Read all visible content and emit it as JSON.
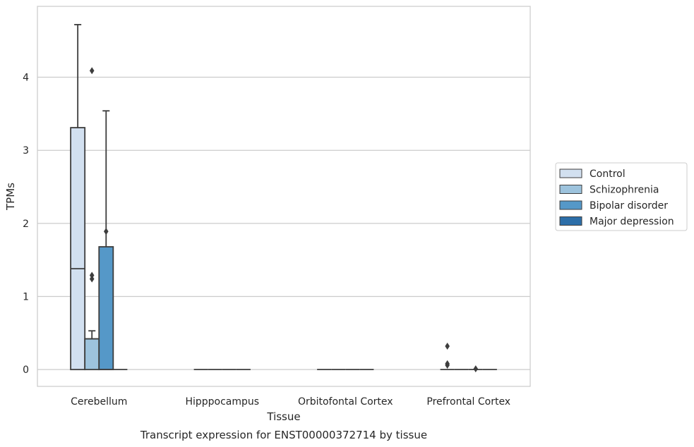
{
  "chart_data": {
    "type": "box",
    "title": "",
    "caption": "Transcript expression for ENST00000372714 by tissue",
    "xlabel": "Tissue",
    "ylabel": "TPMs",
    "ylim": [
      -0.23,
      4.97
    ],
    "yticks": [
      0,
      1,
      2,
      3,
      4
    ],
    "grid": "horizontal",
    "legend_position": "right",
    "categories": [
      "Cerebellum",
      "Hipppocampus",
      "Orbitofontal Cortex",
      "Prefrontal Cortex"
    ],
    "series": [
      {
        "name": "Control",
        "color": "#d2e0f0",
        "boxes": [
          {
            "whislo": 0,
            "q1": 0,
            "med": 1.38,
            "q3": 3.31,
            "whishi": 4.72,
            "fliers": []
          },
          {
            "whislo": 0,
            "q1": 0,
            "med": 0,
            "q3": 0,
            "whishi": 0,
            "fliers": []
          },
          {
            "whislo": 0,
            "q1": 0,
            "med": 0,
            "q3": 0,
            "whishi": 0,
            "fliers": []
          },
          {
            "whislo": 0,
            "q1": 0,
            "med": 0,
            "q3": 0,
            "whishi": 0,
            "fliers": [
              0.32,
              0.08,
              0.06
            ]
          }
        ]
      },
      {
        "name": "Schizophrenia",
        "color": "#9dc3dd",
        "boxes": [
          {
            "whislo": 0,
            "q1": 0,
            "med": 0.42,
            "q3": 0.42,
            "whishi": 0.53,
            "fliers": [
              4.09,
              1.29,
              1.24
            ]
          },
          {
            "whislo": 0,
            "q1": 0,
            "med": 0,
            "q3": 0,
            "whishi": 0,
            "fliers": []
          },
          {
            "whislo": 0,
            "q1": 0,
            "med": 0,
            "q3": 0,
            "whishi": 0,
            "fliers": []
          },
          {
            "whislo": 0,
            "q1": 0,
            "med": 0,
            "q3": 0,
            "whishi": 0,
            "fliers": []
          }
        ]
      },
      {
        "name": "Bipolar disorder",
        "color": "#5598c8",
        "boxes": [
          {
            "whislo": 0,
            "q1": 0,
            "med": 0,
            "q3": 1.68,
            "whishi": 3.54,
            "fliers": [
              1.89
            ]
          },
          {
            "whislo": 0,
            "q1": 0,
            "med": 0,
            "q3": 0,
            "whishi": 0,
            "fliers": []
          },
          {
            "whislo": 0,
            "q1": 0,
            "med": 0,
            "q3": 0,
            "whishi": 0,
            "fliers": []
          },
          {
            "whislo": 0,
            "q1": 0,
            "med": 0,
            "q3": 0,
            "whishi": 0,
            "fliers": [
              0.01
            ]
          }
        ]
      },
      {
        "name": "Major depression",
        "color": "#2c6ea8",
        "boxes": [
          {
            "whislo": 0,
            "q1": 0,
            "med": 0,
            "q3": 0,
            "whishi": 0,
            "fliers": []
          },
          {
            "whislo": 0,
            "q1": 0,
            "med": 0,
            "q3": 0,
            "whishi": 0,
            "fliers": []
          },
          {
            "whislo": 0,
            "q1": 0,
            "med": 0,
            "q3": 0,
            "whishi": 0,
            "fliers": []
          },
          {
            "whislo": 0,
            "q1": 0,
            "med": 0,
            "q3": 0,
            "whishi": 0,
            "fliers": []
          }
        ]
      }
    ]
  }
}
